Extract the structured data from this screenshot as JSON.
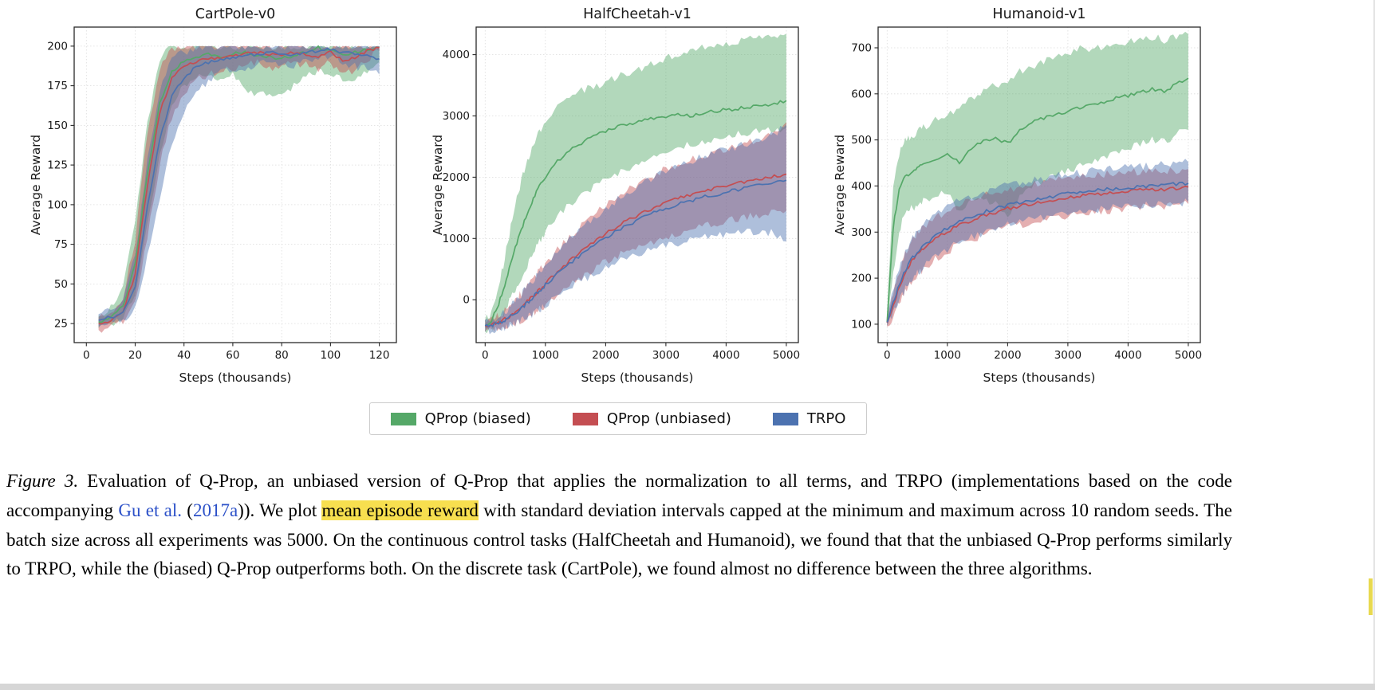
{
  "figure": {
    "legend": {
      "entries": [
        {
          "label": "QProp (biased)",
          "color": "#55a868"
        },
        {
          "label": "QProp (unbiased)",
          "color": "#c44e52"
        },
        {
          "label": "TRPO",
          "color": "#4c72b0"
        }
      ]
    },
    "caption": {
      "parts": [
        {
          "text": "Figure 3.",
          "style": "italic"
        },
        {
          "text": " Evaluation of Q-Prop, an unbiased version of Q-Prop that applies the normalization to all terms, and TRPO (implementations based on the code accompanying ",
          "style": "normal"
        },
        {
          "text": "Gu et al.",
          "style": "link"
        },
        {
          "text": " (",
          "style": "normal"
        },
        {
          "text": "2017a",
          "style": "link"
        },
        {
          "text": ")).  We plot ",
          "style": "normal"
        },
        {
          "text": "mean episode reward",
          "style": "highlight"
        },
        {
          "text": " with standard deviation intervals capped at the minimum and maximum across 10 random seeds.  The batch size across all experiments was 5000.  On the continuous control tasks (HalfCheetah and Humanoid), we found that that the unbiased Q-Prop performs similarly to TRPO, while the (biased) Q-Prop outperforms both. On the discrete task (CartPole), we found almost no difference between the three algorithms.",
          "style": "normal"
        }
      ]
    }
  },
  "chart_data": [
    {
      "type": "line",
      "title": "CartPole-v0",
      "xlabel": "Steps (thousands)",
      "ylabel": "Average Reward",
      "xlim": [
        -5,
        127
      ],
      "ylim": [
        13,
        212
      ],
      "cap": 200,
      "xticks": [
        0,
        20,
        40,
        60,
        80,
        100,
        120
      ],
      "yticks": [
        25,
        50,
        75,
        100,
        125,
        150,
        175,
        200
      ],
      "x": [
        5,
        10,
        15,
        20,
        25,
        30,
        35,
        40,
        45,
        50,
        55,
        60,
        65,
        70,
        75,
        80,
        85,
        90,
        95,
        100,
        105,
        110,
        115,
        120
      ],
      "series": [
        {
          "name": "QProp (biased)",
          "color": "#55a868",
          "mean": [
            26,
            29,
            36,
            62,
            120,
            164,
            184,
            191,
            193,
            195,
            193,
            195,
            196,
            194,
            193,
            192,
            194,
            196,
            199,
            197,
            195,
            196,
            198,
            199
          ],
          "lo": [
            22,
            24,
            28,
            42,
            88,
            132,
            162,
            176,
            181,
            183,
            180,
            183,
            172,
            170,
            168,
            170,
            175,
            180,
            185,
            182,
            179,
            178,
            185,
            190
          ],
          "hi": [
            30,
            35,
            48,
            88,
            152,
            192,
            200,
            200,
            200,
            200,
            200,
            200,
            200,
            200,
            200,
            200,
            200,
            200,
            200,
            200,
            200,
            200,
            200,
            200
          ]
        },
        {
          "name": "QProp (unbiased)",
          "color": "#c44e52",
          "mean": [
            25,
            27,
            33,
            56,
            112,
            158,
            180,
            187,
            190,
            192,
            193,
            194,
            195,
            196,
            194,
            195,
            196,
            195,
            193,
            196,
            191,
            193,
            197,
            199
          ],
          "lo": [
            21,
            23,
            27,
            38,
            80,
            125,
            155,
            170,
            178,
            182,
            184,
            186,
            188,
            190,
            186,
            188,
            190,
            188,
            184,
            190,
            181,
            185,
            192,
            197
          ],
          "hi": [
            29,
            32,
            42,
            78,
            145,
            186,
            198,
            200,
            200,
            200,
            200,
            200,
            200,
            200,
            200,
            200,
            200,
            200,
            200,
            200,
            200,
            200,
            200,
            200
          ]
        },
        {
          "name": "TRPO",
          "color": "#4c72b0",
          "mean": [
            27,
            29,
            32,
            48,
            98,
            140,
            168,
            180,
            187,
            190,
            192,
            193,
            194,
            195,
            196,
            195,
            194,
            196,
            197,
            198,
            196,
            195,
            194,
            192
          ],
          "lo": [
            23,
            25,
            27,
            34,
            68,
            104,
            138,
            158,
            170,
            178,
            183,
            185,
            186,
            188,
            190,
            189,
            188,
            190,
            192,
            194,
            190,
            187,
            186,
            182
          ],
          "hi": [
            31,
            34,
            40,
            68,
            128,
            172,
            192,
            196,
            199,
            200,
            200,
            200,
            200,
            200,
            200,
            200,
            200,
            200,
            200,
            200,
            200,
            200,
            200,
            200
          ]
        }
      ]
    },
    {
      "type": "line",
      "title": "HalfCheetah-v1",
      "xlabel": "Steps (thousands)",
      "ylabel": "Average Reward",
      "xlim": [
        -150,
        5200
      ],
      "ylim": [
        -700,
        4450
      ],
      "cap": null,
      "xticks": [
        0,
        1000,
        2000,
        3000,
        4000,
        5000
      ],
      "yticks": [
        0,
        1000,
        2000,
        3000,
        4000
      ],
      "x": [
        0,
        100,
        200,
        300,
        400,
        500,
        600,
        700,
        800,
        900,
        1000,
        1200,
        1400,
        1600,
        1800,
        2000,
        2200,
        2400,
        2600,
        2800,
        3000,
        3200,
        3400,
        3600,
        3800,
        4000,
        4200,
        4400,
        4600,
        4800,
        5000
      ],
      "series": [
        {
          "name": "QProp (biased)",
          "color": "#55a868",
          "mean": [
            -420,
            -340,
            -140,
            160,
            510,
            850,
            1150,
            1410,
            1650,
            1850,
            2010,
            2260,
            2450,
            2560,
            2660,
            2750,
            2820,
            2870,
            2920,
            2960,
            3000,
            3020,
            3000,
            3050,
            3080,
            3100,
            3120,
            3150,
            3180,
            3200,
            3250
          ],
          "lo": [
            -520,
            -470,
            -390,
            -240,
            -40,
            160,
            360,
            560,
            760,
            950,
            1100,
            1350,
            1550,
            1700,
            1850,
            1950,
            2050,
            2150,
            2250,
            2350,
            2450,
            2500,
            2520,
            2550,
            2600,
            2650,
            2700,
            2720,
            2750,
            2780,
            2800
          ],
          "hi": [
            -330,
            -210,
            110,
            560,
            1060,
            1540,
            1940,
            2260,
            2540,
            2750,
            2920,
            3170,
            3350,
            3420,
            3470,
            3560,
            3650,
            3700,
            3760,
            3860,
            3950,
            4020,
            4060,
            4100,
            4140,
            4180,
            4210,
            4250,
            4280,
            4300,
            4340
          ]
        },
        {
          "name": "QProp (unbiased)",
          "color": "#c44e52",
          "mean": [
            -420,
            -400,
            -380,
            -330,
            -270,
            -200,
            -120,
            -30,
            60,
            160,
            260,
            450,
            630,
            790,
            940,
            1080,
            1200,
            1310,
            1410,
            1500,
            1580,
            1650,
            1710,
            1770,
            1820,
            1870,
            1900,
            1950,
            1980,
            2010,
            2050
          ],
          "lo": [
            -520,
            -505,
            -480,
            -450,
            -415,
            -375,
            -330,
            -280,
            -220,
            -150,
            -80,
            80,
            230,
            370,
            500,
            620,
            720,
            810,
            890,
            960,
            1030,
            1090,
            1140,
            1190,
            1240,
            1280,
            1320,
            1360,
            1390,
            1420,
            1450
          ],
          "hi": [
            -320,
            -295,
            -270,
            -200,
            -100,
            0,
            110,
            230,
            350,
            470,
            590,
            810,
            1020,
            1200,
            1380,
            1540,
            1680,
            1810,
            1930,
            2040,
            2130,
            2210,
            2280,
            2350,
            2410,
            2470,
            2520,
            2570,
            2620,
            2700,
            2900
          ]
        },
        {
          "name": "TRPO",
          "color": "#4c72b0",
          "mean": [
            -430,
            -410,
            -390,
            -350,
            -290,
            -220,
            -140,
            -50,
            50,
            150,
            240,
            420,
            590,
            740,
            880,
            1010,
            1130,
            1230,
            1330,
            1420,
            1490,
            1560,
            1610,
            1670,
            1710,
            1760,
            1800,
            1840,
            1870,
            1900,
            1950
          ],
          "lo": [
            -530,
            -515,
            -495,
            -465,
            -430,
            -390,
            -340,
            -290,
            -230,
            -160,
            -90,
            60,
            190,
            310,
            420,
            520,
            610,
            690,
            760,
            830,
            880,
            930,
            970,
            1010,
            1040,
            1070,
            1090,
            1110,
            1120,
            1080,
            950
          ],
          "hi": [
            -330,
            -305,
            -280,
            -220,
            -120,
            -20,
            90,
            210,
            330,
            450,
            570,
            780,
            990,
            1170,
            1340,
            1500,
            1640,
            1770,
            1900,
            2010,
            2100,
            2190,
            2260,
            2330,
            2390,
            2450,
            2510,
            2570,
            2620,
            2700,
            2860
          ]
        }
      ]
    },
    {
      "type": "line",
      "title": "Humanoid-v1",
      "xlabel": "Steps (thousands)",
      "ylabel": "Average Reward",
      "xlim": [
        -150,
        5200
      ],
      "ylim": [
        60,
        745
      ],
      "cap": null,
      "xticks": [
        0,
        1000,
        2000,
        3000,
        4000,
        5000
      ],
      "yticks": [
        100,
        200,
        300,
        400,
        500,
        600,
        700
      ],
      "x": [
        0,
        100,
        200,
        300,
        400,
        500,
        600,
        800,
        1000,
        1200,
        1400,
        1600,
        1800,
        2000,
        2200,
        2400,
        2600,
        2800,
        3000,
        3200,
        3400,
        3600,
        3800,
        4000,
        4200,
        4400,
        4600,
        4800,
        5000
      ],
      "series": [
        {
          "name": "QProp (biased)",
          "color": "#55a868",
          "mean": [
            105,
            310,
            395,
            420,
            430,
            440,
            448,
            458,
            468,
            452,
            480,
            498,
            505,
            492,
            520,
            540,
            548,
            556,
            562,
            570,
            576,
            582,
            590,
            596,
            602,
            610,
            606,
            620,
            634
          ],
          "lo": [
            95,
            210,
            305,
            340,
            350,
            358,
            366,
            378,
            390,
            345,
            365,
            372,
            360,
            335,
            380,
            400,
            412,
            422,
            432,
            442,
            452,
            462,
            472,
            482,
            490,
            500,
            496,
            512,
            522
          ],
          "hi": [
            120,
            405,
            470,
            498,
            508,
            518,
            528,
            542,
            558,
            570,
            588,
            608,
            618,
            628,
            648,
            660,
            670,
            680,
            690,
            698,
            700,
            704,
            710,
            714,
            718,
            724,
            716,
            724,
            730
          ]
        },
        {
          "name": "QProp (unbiased)",
          "color": "#c44e52",
          "mean": [
            103,
            140,
            180,
            212,
            236,
            251,
            263,
            286,
            301,
            315,
            326,
            336,
            343,
            351,
            357,
            361,
            366,
            371,
            375,
            378,
            381,
            384,
            386,
            389,
            391,
            391,
            393,
            395,
            398
          ],
          "lo": [
            95,
            116,
            146,
            171,
            191,
            206,
            219,
            241,
            258,
            273,
            284,
            294,
            301,
            310,
            316,
            321,
            326,
            331,
            335,
            339,
            342,
            345,
            348,
            351,
            353,
            354,
            356,
            358,
            361
          ],
          "hi": [
            112,
            168,
            216,
            251,
            279,
            296,
            309,
            331,
            346,
            359,
            369,
            379,
            386,
            393,
            399,
            403,
            408,
            412,
            416,
            419,
            422,
            425,
            427,
            429,
            431,
            431,
            433,
            435,
            437
          ]
        },
        {
          "name": "TRPO",
          "color": "#4c72b0",
          "mean": [
            104,
            146,
            186,
            216,
            241,
            256,
            269,
            293,
            309,
            323,
            333,
            343,
            351,
            358,
            364,
            369,
            374,
            379,
            383,
            386,
            389,
            392,
            394,
            397,
            399,
            401,
            403,
            404,
            406
          ],
          "lo": [
            96,
            121,
            151,
            176,
            196,
            211,
            223,
            246,
            263,
            278,
            289,
            299,
            307,
            315,
            321,
            327,
            332,
            337,
            341,
            345,
            348,
            351,
            353,
            356,
            358,
            360,
            362,
            363,
            365
          ],
          "hi": [
            113,
            173,
            221,
            256,
            284,
            301,
            314,
            339,
            354,
            367,
            377,
            387,
            394,
            401,
            407,
            412,
            417,
            422,
            426,
            429,
            432,
            435,
            438,
            441,
            443,
            445,
            447,
            449,
            452
          ]
        }
      ]
    }
  ]
}
